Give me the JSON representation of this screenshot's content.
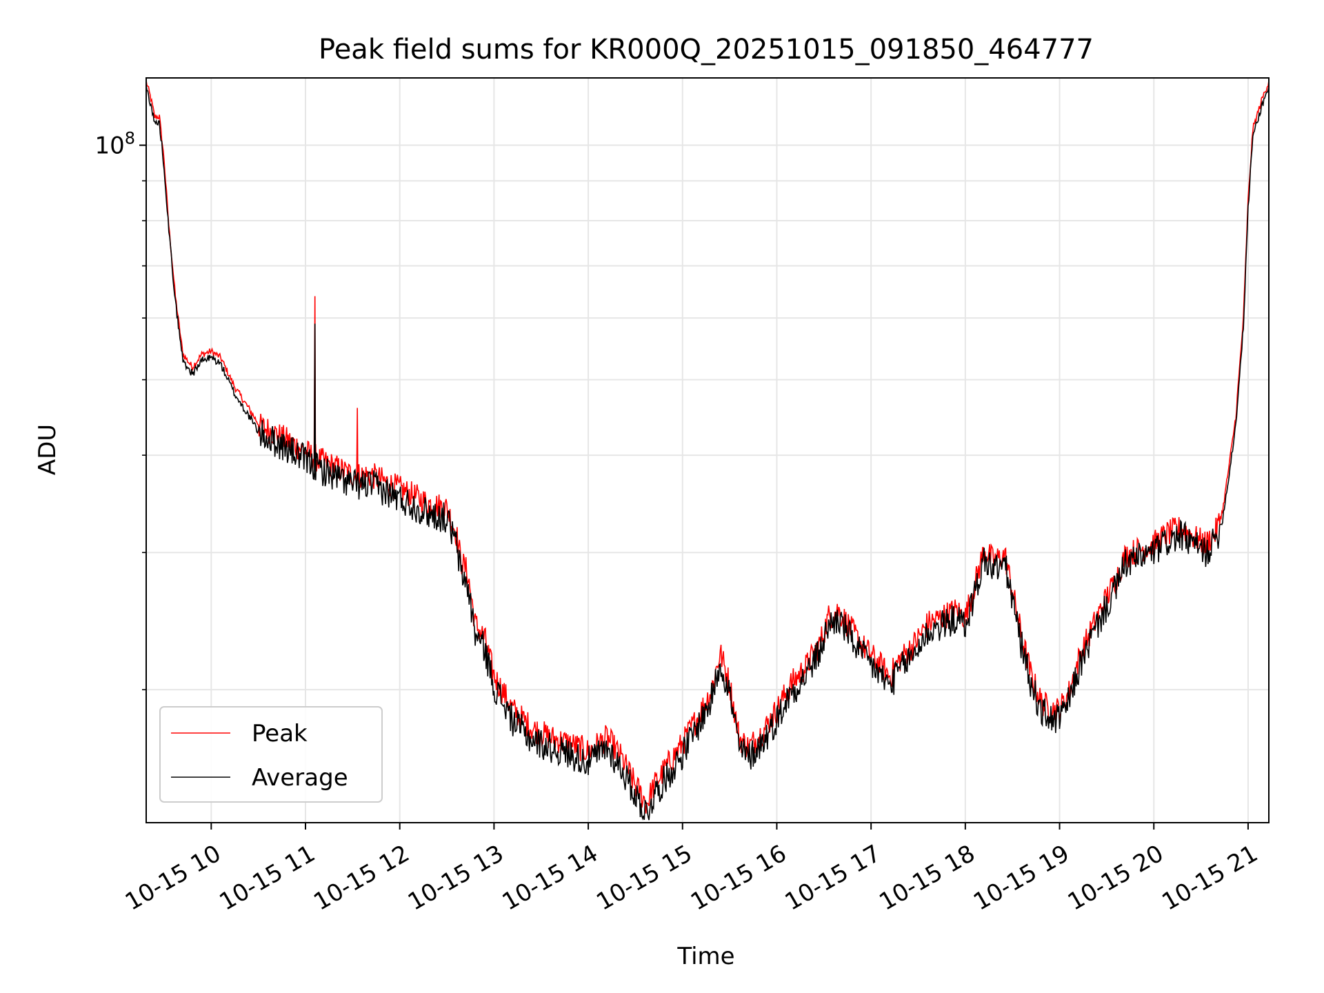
{
  "chart_data": {
    "type": "line",
    "title": "Peak field sums for KR000Q_20251015_091850_464777",
    "xlabel": "Time",
    "ylabel": "ADU",
    "y_scale": "log",
    "ylim": [
      13500000,
      122000000
    ],
    "y_major_ticks": [
      {
        "value": 100000000,
        "base": "10",
        "exp": "8"
      }
    ],
    "y_minor_ticks": [
      20000000,
      30000000,
      40000000,
      50000000,
      60000000,
      70000000,
      80000000,
      90000000
    ],
    "xlim_hours": [
      9.31,
      21.22
    ],
    "x_ticks": [
      {
        "value": 10,
        "label": "10-15 10"
      },
      {
        "value": 11,
        "label": "10-15 11"
      },
      {
        "value": 12,
        "label": "10-15 12"
      },
      {
        "value": 13,
        "label": "10-15 13"
      },
      {
        "value": 14,
        "label": "10-15 14"
      },
      {
        "value": 15,
        "label": "10-15 15"
      },
      {
        "value": 16,
        "label": "10-15 16"
      },
      {
        "value": 17,
        "label": "10-15 17"
      },
      {
        "value": 18,
        "label": "10-15 18"
      },
      {
        "value": 19,
        "label": "10-15 19"
      },
      {
        "value": 20,
        "label": "10-15 20"
      },
      {
        "value": 21,
        "label": "10-15 21"
      }
    ],
    "grid": true,
    "legend_position": "lower-left",
    "series": [
      {
        "name": "Peak",
        "color": "#ff0000",
        "x": [
          9.31,
          9.36,
          9.4,
          9.45,
          9.5,
          9.55,
          9.62,
          9.7,
          9.8,
          9.9,
          10.0,
          10.1,
          10.25,
          10.4,
          10.5,
          10.6,
          10.75,
          10.9,
          11.1,
          11.3,
          11.5,
          11.7,
          11.9,
          12.1,
          12.3,
          12.5,
          12.6,
          12.65,
          12.72,
          12.8,
          12.9,
          13.0,
          13.1,
          13.2,
          13.4,
          13.6,
          13.8,
          14.0,
          14.2,
          14.35,
          14.5,
          14.62,
          14.7,
          14.85,
          15.0,
          15.15,
          15.3,
          15.4,
          15.5,
          15.6,
          15.7,
          15.85,
          16.0,
          16.15,
          16.3,
          16.45,
          16.55,
          16.65,
          16.75,
          16.9,
          17.05,
          17.2,
          17.3,
          17.45,
          17.6,
          17.75,
          17.9,
          18.0,
          18.1,
          18.2,
          18.3,
          18.42,
          18.5,
          18.6,
          18.7,
          18.8,
          18.9,
          19.0,
          19.1,
          19.2,
          19.3,
          19.4,
          19.5,
          19.6,
          19.7,
          19.85,
          20.0,
          20.15,
          20.3,
          20.45,
          20.55,
          20.65,
          20.73,
          20.8,
          20.87,
          20.95,
          21.0,
          21.05,
          21.1,
          21.15,
          21.22
        ],
        "values": [
          121000000,
          115000000,
          109000000,
          109000000,
          96000000,
          79000000,
          64000000,
          54000000,
          52000000,
          54000000,
          54500000,
          53500000,
          49000000,
          46000000,
          44000000,
          43500000,
          42500000,
          41500000,
          40000000,
          39000000,
          38000000,
          38000000,
          37000000,
          36000000,
          35000000,
          34500000,
          32000000,
          29500000,
          28500000,
          24500000,
          23500000,
          21000000,
          20000000,
          19000000,
          18000000,
          17500000,
          17200000,
          16800000,
          17500000,
          16500000,
          15200000,
          14400000,
          15200000,
          16200000,
          17200000,
          18500000,
          20000000,
          22500000,
          20500000,
          17500000,
          17000000,
          17800000,
          19000000,
          20500000,
          21500000,
          23000000,
          25000000,
          25500000,
          24500000,
          23000000,
          22000000,
          21000000,
          22000000,
          23000000,
          24500000,
          25000000,
          25500000,
          25000000,
          27500000,
          30500000,
          29500000,
          30000000,
          27000000,
          23500000,
          21000000,
          19500000,
          19000000,
          19000000,
          20000000,
          22000000,
          23500000,
          25000000,
          26500000,
          28000000,
          30000000,
          30500000,
          31000000,
          32000000,
          32500000,
          31500000,
          31000000,
          32000000,
          34000000,
          39000000,
          45000000,
          60000000,
          85000000,
          105000000,
          110000000,
          115000000,
          121000000
        ]
      },
      {
        "name": "Average",
        "color": "#000000",
        "x": [
          9.31,
          9.36,
          9.4,
          9.45,
          9.5,
          9.55,
          9.62,
          9.7,
          9.8,
          9.9,
          10.0,
          10.1,
          10.25,
          10.4,
          10.5,
          10.6,
          10.75,
          10.9,
          11.1,
          11.3,
          11.5,
          11.7,
          11.9,
          12.1,
          12.3,
          12.5,
          12.6,
          12.65,
          12.72,
          12.8,
          12.9,
          13.0,
          13.1,
          13.2,
          13.4,
          13.6,
          13.8,
          14.0,
          14.2,
          14.35,
          14.5,
          14.62,
          14.7,
          14.85,
          15.0,
          15.15,
          15.3,
          15.4,
          15.5,
          15.6,
          15.7,
          15.85,
          16.0,
          16.15,
          16.3,
          16.45,
          16.55,
          16.65,
          16.75,
          16.9,
          17.05,
          17.2,
          17.3,
          17.45,
          17.6,
          17.75,
          17.9,
          18.0,
          18.1,
          18.2,
          18.3,
          18.42,
          18.5,
          18.6,
          18.7,
          18.8,
          18.9,
          19.0,
          19.1,
          19.2,
          19.3,
          19.4,
          19.5,
          19.6,
          19.7,
          19.85,
          20.0,
          20.15,
          20.3,
          20.45,
          20.55,
          20.65,
          20.73,
          20.8,
          20.87,
          20.95,
          21.0,
          21.05,
          21.1,
          21.15,
          21.22
        ],
        "values": [
          119000000,
          113000000,
          107000000,
          107000000,
          94000000,
          78000000,
          63000000,
          53000000,
          51000000,
          53000000,
          53500000,
          52500000,
          48000000,
          45000000,
          43000000,
          42500000,
          41500000,
          40500000,
          39000000,
          38000000,
          37000000,
          37000000,
          36000000,
          35000000,
          34000000,
          33500000,
          31000000,
          28500000,
          27500000,
          23800000,
          22800000,
          20400000,
          19400000,
          18400000,
          17400000,
          17000000,
          16700000,
          16300000,
          17000000,
          16000000,
          14800000,
          14000000,
          14800000,
          15700000,
          16700000,
          18000000,
          19500000,
          21900000,
          20000000,
          17000000,
          16500000,
          17300000,
          18500000,
          20000000,
          21000000,
          22500000,
          24400000,
          24900000,
          23900000,
          22400000,
          21400000,
          20400000,
          21400000,
          22400000,
          23900000,
          24400000,
          24900000,
          24400000,
          26800000,
          29700000,
          28800000,
          29300000,
          26300000,
          22900000,
          20500000,
          19000000,
          18500000,
          18500000,
          19500000,
          21400000,
          22900000,
          24400000,
          25800000,
          27300000,
          29300000,
          29800000,
          30300000,
          31300000,
          31800000,
          30800000,
          30300000,
          31300000,
          33200000,
          38000000,
          44000000,
          58500000,
          83000000,
          103000000,
          108000000,
          113000000,
          119000000
        ]
      }
    ]
  }
}
